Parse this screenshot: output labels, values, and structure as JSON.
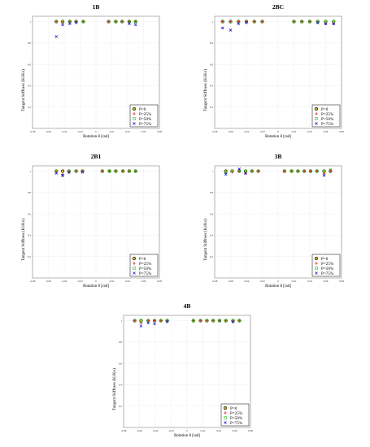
{
  "page": {
    "title": ""
  },
  "legend_labels": [
    "P=0",
    "P=25%",
    "P=50%",
    "P=75%"
  ],
  "colors": {
    "P0": "#000000",
    "P25": "#e02020",
    "P50": "#22b422",
    "P75": "#1c1cd4",
    "P0_fill": "#c8c020",
    "grid": "#d7d7d7"
  },
  "chart_data": [
    {
      "type": "scatter",
      "title": "1B",
      "xlabel": "Rotation θ [rad]",
      "ylabel": "Tangent Stiffness (Ki/Ko)",
      "xlim": [
        -0.08,
        0.08
      ],
      "ylim": [
        0,
        1.05
      ],
      "xticks": [
        "-0.08",
        "-0.06",
        "-0.04",
        "-0.02",
        "0",
        "0.02",
        "0.04",
        "0.06",
        "0.08"
      ],
      "yticks": [
        "0.2",
        "0.4",
        "0.6",
        "0.8",
        "1"
      ],
      "grid": true,
      "legend_position": "bottom-right",
      "series": [
        {
          "name": "P=0",
          "x": [
            -0.05,
            -0.042,
            -0.033,
            -0.025,
            -0.016,
            0.016,
            0.025,
            0.033,
            0.042,
            0.05
          ],
          "y": [
            1.0,
            1.0,
            1.0,
            1.0,
            1.0,
            1.0,
            1.0,
            1.0,
            1.0,
            1.0
          ]
        },
        {
          "name": "P=25%",
          "x": [
            -0.05,
            -0.042,
            -0.033,
            -0.025,
            -0.016,
            0.016,
            0.025,
            0.033,
            0.042,
            0.05
          ],
          "y": [
            1.0,
            0.99,
            1.0,
            1.0,
            1.0,
            1.0,
            1.0,
            1.0,
            1.0,
            1.0
          ]
        },
        {
          "name": "P=50%",
          "x": [
            -0.05,
            -0.042,
            -0.033,
            -0.025,
            -0.016,
            0.016,
            0.025,
            0.033,
            0.042,
            0.05
          ],
          "y": [
            1.0,
            1.0,
            1.0,
            1.0,
            1.0,
            1.0,
            1.0,
            1.0,
            1.0,
            1.0
          ]
        },
        {
          "name": "P=75%",
          "x": [
            -0.05,
            -0.042,
            -0.033,
            -0.025,
            0.042,
            0.05
          ],
          "y": [
            0.86,
            0.97,
            0.98,
            0.99,
            0.98,
            0.97
          ]
        }
      ]
    },
    {
      "type": "scatter",
      "title": "2BC",
      "xlabel": "Rotation θ [rad]",
      "ylabel": "Tangent Stiffness (Ki/Ko)",
      "xlim": [
        -0.08,
        0.08
      ],
      "ylim": [
        0,
        1.05
      ],
      "xticks": [
        "-0.08",
        "-0.06",
        "-0.04",
        "-0.02",
        "0",
        "0.02",
        "0.04",
        "0.06",
        "0.08"
      ],
      "yticks": [
        "0.2",
        "0.4",
        "0.6",
        "0.8",
        "1"
      ],
      "grid": true,
      "legend_position": "bottom-right",
      "series": [
        {
          "name": "P=0",
          "x": [
            -0.07,
            -0.06,
            -0.05,
            -0.04,
            -0.03,
            -0.02,
            0.02,
            0.03,
            0.04,
            0.05,
            0.06,
            0.07
          ],
          "y": [
            1.0,
            1.0,
            1.0,
            1.0,
            1.0,
            1.0,
            1.0,
            1.0,
            1.0,
            1.0,
            1.0,
            1.0
          ]
        },
        {
          "name": "P=25%",
          "x": [
            -0.07,
            -0.06,
            -0.05,
            -0.04,
            -0.03,
            -0.02,
            0.02,
            0.03,
            0.04,
            0.05,
            0.06,
            0.07
          ],
          "y": [
            1.0,
            1.0,
            1.0,
            1.0,
            1.0,
            1.0,
            1.0,
            1.0,
            1.0,
            0.99,
            0.98,
            0.98
          ]
        },
        {
          "name": "P=50%",
          "x": [
            -0.07,
            -0.06,
            -0.05,
            -0.04,
            -0.03,
            -0.02,
            0.02,
            0.03,
            0.04,
            0.05,
            0.06,
            0.07
          ],
          "y": [
            1.0,
            1.0,
            1.0,
            1.0,
            1.0,
            1.0,
            1.0,
            1.0,
            1.0,
            1.0,
            1.0,
            1.0
          ]
        },
        {
          "name": "P=75%",
          "x": [
            -0.07,
            -0.06,
            -0.05,
            -0.04,
            0.05,
            0.06,
            0.07
          ],
          "y": [
            0.94,
            0.92,
            0.98,
            0.99,
            0.99,
            0.98,
            0.98
          ]
        }
      ]
    },
    {
      "type": "scatter",
      "title": "2B1",
      "xlabel": "Rotation θ [rad]",
      "ylabel": "Tangent Stiffness (Ki/Ko)",
      "xlim": [
        -0.08,
        0.08
      ],
      "ylim": [
        0,
        1.05
      ],
      "xticks": [
        "-0.08",
        "-0.06",
        "-0.04",
        "-0.02",
        "0",
        "0.02",
        "0.04",
        "0.06",
        "0.08"
      ],
      "yticks": [
        "0.2",
        "0.4",
        "0.6",
        "0.8",
        "1"
      ],
      "grid": true,
      "legend_position": "bottom-right",
      "series": [
        {
          "name": "P=0",
          "x": [
            -0.05,
            -0.042,
            -0.034,
            -0.025,
            -0.017,
            0.008,
            0.017,
            0.025,
            0.034,
            0.042,
            0.05
          ],
          "y": [
            1.0,
            1.0,
            1.0,
            1.0,
            1.0,
            1.0,
            1.0,
            1.0,
            1.0,
            1.0,
            1.0
          ]
        },
        {
          "name": "P=25%",
          "x": [
            -0.05,
            -0.042,
            -0.034,
            -0.025,
            -0.017,
            0.008,
            0.017,
            0.025,
            0.034,
            0.042,
            0.05
          ],
          "y": [
            0.99,
            0.97,
            0.99,
            1.0,
            1.0,
            1.0,
            1.0,
            1.0,
            1.0,
            1.0,
            1.0
          ]
        },
        {
          "name": "P=50%",
          "x": [
            -0.05,
            -0.042,
            -0.034,
            -0.025,
            -0.017,
            0.008,
            0.017,
            0.025,
            0.034,
            0.042,
            0.05
          ],
          "y": [
            1.0,
            0.96,
            1.0,
            1.0,
            1.0,
            1.0,
            1.0,
            1.0,
            1.0,
            1.0,
            1.0
          ]
        },
        {
          "name": "P=75%",
          "x": [
            -0.05,
            -0.042,
            -0.034,
            -0.017
          ],
          "y": [
            0.98,
            0.96,
            0.99,
            0.99
          ]
        }
      ]
    },
    {
      "type": "scatter",
      "title": "3B",
      "xlabel": "Rotation θ [rad]",
      "ylabel": "Tangent Stiffness (Ki/Ko)",
      "xlim": [
        -0.08,
        0.08
      ],
      "ylim": [
        0,
        1.05
      ],
      "xticks": [
        "-0.08",
        "-0.06",
        "-0.04",
        "-0.02",
        "0",
        "0.02",
        "0.04",
        "0.06",
        "0.08"
      ],
      "yticks": [
        "0.2",
        "0.4",
        "0.6",
        "0.8",
        "1"
      ],
      "grid": true,
      "legend_position": "bottom-right",
      "series": [
        {
          "name": "P=0",
          "x": [
            -0.066,
            -0.058,
            -0.049,
            -0.041,
            -0.033,
            -0.025,
            0.008,
            0.017,
            0.025,
            0.033,
            0.041,
            0.049,
            0.058,
            0.066
          ],
          "y": [
            1.0,
            1.0,
            1.0,
            1.0,
            1.0,
            1.0,
            1.0,
            1.0,
            1.0,
            1.0,
            1.0,
            1.0,
            1.0,
            1.0
          ]
        },
        {
          "name": "P=25%",
          "x": [
            -0.066,
            -0.058,
            -0.049,
            -0.041,
            -0.033,
            -0.025,
            0.008,
            0.017,
            0.025,
            0.033,
            0.041,
            0.049,
            0.058,
            0.066
          ],
          "y": [
            0.98,
            0.99,
            1.0,
            0.98,
            1.0,
            1.0,
            1.0,
            1.0,
            1.0,
            1.0,
            1.0,
            1.0,
            0.98,
            1.0
          ]
        },
        {
          "name": "P=50%",
          "x": [
            -0.066,
            -0.058,
            -0.049,
            -0.041,
            -0.033,
            -0.025,
            0.008,
            0.017,
            0.025,
            0.033,
            0.041,
            0.049,
            0.058,
            0.066
          ],
          "y": [
            0.99,
            1.0,
            1.0,
            1.0,
            1.0,
            1.0,
            1.0,
            1.0,
            1.0,
            1.0,
            1.0,
            1.0,
            1.0,
            1.01
          ]
        },
        {
          "name": "P=75%",
          "x": [
            -0.066,
            -0.049,
            -0.041,
            0.058
          ],
          "y": [
            0.97,
            1.02,
            0.98,
            0.96
          ]
        }
      ]
    },
    {
      "type": "scatter",
      "title": "4B",
      "xlabel": "Rotation θ [rad]",
      "ylabel": "Tangent Stiffness (Ki/Ko)",
      "xlim": [
        -0.08,
        0.08
      ],
      "ylim": [
        0,
        1.05
      ],
      "xticks": [
        "-0.08",
        "-0.06",
        "-0.04",
        "-0.02",
        "0",
        "0.02",
        "0.04",
        "0.06",
        "0.08"
      ],
      "yticks": [
        "0.2",
        "0.4",
        "0.6",
        "0.8",
        "1"
      ],
      "grid": true,
      "legend_position": "bottom-right",
      "series": [
        {
          "name": "P=0",
          "x": [
            -0.066,
            -0.058,
            -0.049,
            -0.041,
            -0.033,
            -0.025,
            0.008,
            0.017,
            0.025,
            0.033,
            0.041,
            0.049,
            0.058,
            0.066
          ],
          "y": [
            1.0,
            1.0,
            1.0,
            1.0,
            1.0,
            1.0,
            1.0,
            1.0,
            1.0,
            1.0,
            1.0,
            1.0,
            1.0,
            1.0
          ]
        },
        {
          "name": "P=25%",
          "x": [
            -0.066,
            -0.058,
            -0.049,
            -0.041,
            -0.033,
            -0.025,
            0.008,
            0.017,
            0.025,
            0.033,
            0.041,
            0.049,
            0.058,
            0.066
          ],
          "y": [
            1.0,
            0.98,
            1.0,
            1.0,
            1.0,
            1.0,
            1.0,
            1.0,
            1.0,
            1.0,
            1.0,
            1.0,
            0.99,
            1.0
          ]
        },
        {
          "name": "P=50%",
          "x": [
            -0.066,
            -0.058,
            -0.049,
            -0.041,
            -0.033,
            -0.025,
            0.008,
            0.017,
            0.025,
            0.033,
            0.041,
            0.049,
            0.058,
            0.066
          ],
          "y": [
            1.0,
            1.0,
            1.0,
            1.0,
            1.0,
            1.0,
            1.0,
            1.0,
            1.0,
            1.0,
            1.0,
            1.0,
            1.0,
            1.0
          ]
        },
        {
          "name": "P=75%",
          "x": [
            -0.058,
            -0.049,
            -0.041,
            -0.025,
            0.058
          ],
          "y": [
            0.95,
            0.98,
            0.97,
            0.99,
            0.99
          ]
        }
      ]
    }
  ]
}
